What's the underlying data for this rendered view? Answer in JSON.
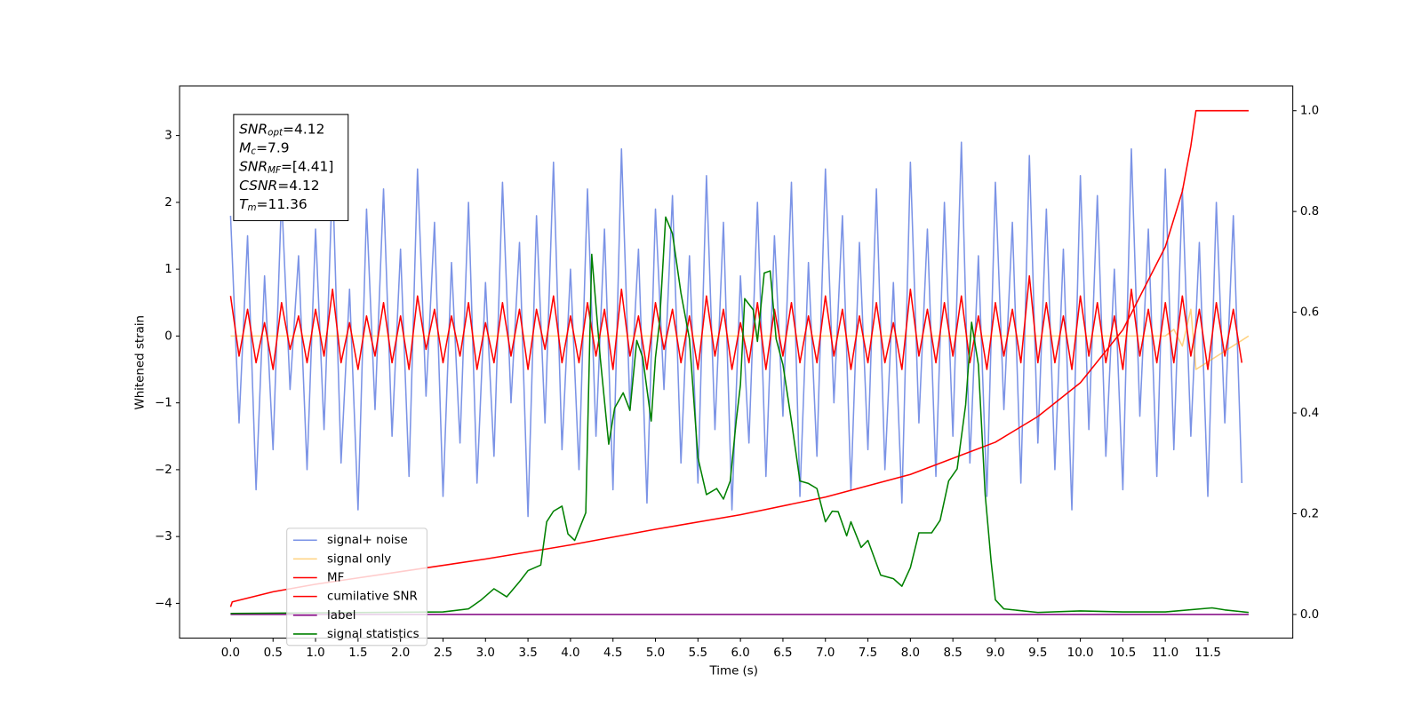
{
  "chart_data": {
    "type": "line",
    "xlabel": "Time (s)",
    "ylabel": "Whitened strain",
    "xlim": [
      -0.6,
      12.5
    ],
    "ylim": [
      -4.52,
      3.74
    ],
    "y2lim": [
      -0.047,
      1.049
    ],
    "xticks": [
      {
        "value": 0,
        "label": "0.0"
      },
      {
        "value": 0.5,
        "label": "0.5"
      },
      {
        "value": 1,
        "label": "1.0"
      },
      {
        "value": 1.5,
        "label": "1.5"
      },
      {
        "value": 2,
        "label": "2.0"
      },
      {
        "value": 2.5,
        "label": "2.5"
      },
      {
        "value": 3,
        "label": "3.0"
      },
      {
        "value": 3.5,
        "label": "3.5"
      },
      {
        "value": 4,
        "label": "4.0"
      },
      {
        "value": 4.5,
        "label": "4.5"
      },
      {
        "value": 5,
        "label": "5.0"
      },
      {
        "value": 5.5,
        "label": "5.5"
      },
      {
        "value": 6,
        "label": "6.0"
      },
      {
        "value": 6.5,
        "label": "6.5"
      },
      {
        "value": 7,
        "label": "7.0"
      },
      {
        "value": 7.5,
        "label": "7.5"
      },
      {
        "value": 8,
        "label": "8.0"
      },
      {
        "value": 8.5,
        "label": "8.5"
      },
      {
        "value": 9,
        "label": "9.0"
      },
      {
        "value": 9.5,
        "label": "9.5"
      },
      {
        "value": 10,
        "label": "10.0"
      },
      {
        "value": 10.5,
        "label": "10.5"
      },
      {
        "value": 11,
        "label": "11.0"
      },
      {
        "value": 11.5,
        "label": "11.5"
      }
    ],
    "yticks": [
      {
        "value": -4,
        "label": "−4"
      },
      {
        "value": -3,
        "label": "−3"
      },
      {
        "value": -2,
        "label": "−2"
      },
      {
        "value": -1,
        "label": "−1"
      },
      0,
      1,
      2,
      3
    ],
    "y2ticks": [
      {
        "value": 0,
        "label": "0.0"
      },
      {
        "value": 0.2,
        "label": "0.2"
      },
      {
        "value": 0.4,
        "label": "0.4"
      },
      {
        "value": 0.6,
        "label": "0.6"
      },
      {
        "value": 0.8,
        "label": "0.8"
      },
      {
        "value": 1,
        "label": "1.0"
      }
    ],
    "grid": false,
    "legend": "lower left",
    "annotation": [
      {
        "main": "SNR",
        "sub": "opt",
        "rest": "=4.12"
      },
      {
        "main": "M",
        "sub": "c",
        "rest": "=7.9"
      },
      {
        "main": "SNR",
        "sub": "MF",
        "rest": "=[4.41]"
      },
      {
        "main": "CSNR",
        "rest": "=4.12"
      },
      {
        "main": "T",
        "sub": "m",
        "rest": "=11.36"
      }
    ],
    "x": [
      0.0,
      0.1,
      0.2,
      0.3,
      0.4,
      0.5,
      0.6,
      0.7,
      0.8,
      0.9,
      1.0,
      1.1,
      1.2,
      1.3,
      1.4,
      1.5,
      1.6,
      1.7,
      1.8,
      1.9,
      2.0,
      2.1,
      2.2,
      2.3,
      2.4,
      2.5,
      2.6,
      2.7,
      2.8,
      2.9,
      3.0,
      3.1,
      3.2,
      3.3,
      3.4,
      3.5,
      3.6,
      3.7,
      3.8,
      3.9,
      4.0,
      4.1,
      4.2,
      4.3,
      4.4,
      4.5,
      4.6,
      4.7,
      4.8,
      4.9,
      5.0,
      5.1,
      5.2,
      5.3,
      5.4,
      5.5,
      5.6,
      5.7,
      5.8,
      5.9,
      6.0,
      6.1,
      6.2,
      6.3,
      6.4,
      6.5,
      6.6,
      6.7,
      6.8,
      6.9,
      7.0,
      7.1,
      7.2,
      7.3,
      7.4,
      7.5,
      7.6,
      7.7,
      7.8,
      7.9,
      8.0,
      8.1,
      8.2,
      8.3,
      8.4,
      8.5,
      8.6,
      8.7,
      8.8,
      8.9,
      9.0,
      9.1,
      9.2,
      9.3,
      9.4,
      9.5,
      9.6,
      9.7,
      9.8,
      9.9,
      10.0,
      10.1,
      10.2,
      10.3,
      10.4,
      10.5,
      10.6,
      10.7,
      10.8,
      10.9,
      11.0,
      11.1,
      11.2,
      11.3,
      11.4,
      11.5,
      11.6,
      11.7,
      11.8,
      11.9
    ],
    "series": [
      {
        "name": "signal+ noise",
        "color": "#7b93e6",
        "values": [
          1.8,
          -1.3,
          1.5,
          -2.3,
          0.9,
          -1.7,
          2.1,
          -0.8,
          1.2,
          -2.0,
          1.6,
          -1.4,
          2.4,
          -1.9,
          0.7,
          -2.6,
          1.9,
          -1.1,
          2.2,
          -1.5,
          1.3,
          -2.1,
          2.5,
          -0.9,
          1.7,
          -2.4,
          1.1,
          -1.6,
          2.0,
          -2.2,
          0.8,
          -1.8,
          2.3,
          -1.0,
          1.4,
          -2.7,
          1.8,
          -1.3,
          2.6,
          -1.7,
          1.0,
          -2.0,
          2.2,
          -1.5,
          1.6,
          -2.3,
          2.8,
          -1.1,
          1.3,
          -2.5,
          1.9,
          -0.8,
          2.1,
          -1.9,
          1.2,
          -2.2,
          2.4,
          -1.4,
          1.7,
          -2.6,
          0.9,
          -1.6,
          2.0,
          -2.1,
          1.5,
          -1.2,
          2.3,
          -2.4,
          1.1,
          -1.8,
          2.5,
          -1.0,
          1.8,
          -2.3,
          1.4,
          -1.7,
          2.2,
          -2.0,
          0.8,
          -2.5,
          2.6,
          -1.3,
          1.6,
          -2.1,
          2.0,
          -1.5,
          2.9,
          -1.9,
          1.2,
          -2.4,
          2.3,
          -1.1,
          1.7,
          -2.2,
          2.7,
          -1.6,
          1.9,
          -2.0,
          1.3,
          -2.6,
          2.4,
          -1.4,
          2.1,
          -1.8,
          1.0,
          -2.3,
          2.8,
          -1.2,
          1.6,
          -2.1,
          2.5,
          -1.7,
          2.2,
          -1.5,
          1.4,
          -2.4,
          2.0,
          -1.3,
          1.8,
          -2.2
        ]
      },
      {
        "name": "signal only",
        "color": "#ffa500",
        "x": [
          0,
          11.0,
          11.1,
          11.2,
          11.3,
          11.36,
          11.98
        ],
        "values": [
          0,
          0,
          0.1,
          -0.15,
          0.4,
          -0.5,
          0
        ]
      },
      {
        "name": "MF",
        "color": "#ff0000",
        "values": [
          0.6,
          -0.3,
          0.4,
          -0.4,
          0.2,
          -0.5,
          0.5,
          -0.2,
          0.3,
          -0.4,
          0.4,
          -0.3,
          0.7,
          -0.4,
          0.2,
          -0.5,
          0.3,
          -0.3,
          0.5,
          -0.4,
          0.3,
          -0.5,
          0.6,
          -0.2,
          0.4,
          -0.4,
          0.3,
          -0.3,
          0.5,
          -0.5,
          0.2,
          -0.4,
          0.5,
          -0.3,
          0.4,
          -0.5,
          0.4,
          -0.2,
          0.6,
          -0.4,
          0.3,
          -0.4,
          0.5,
          -0.3,
          0.4,
          -0.5,
          0.7,
          -0.3,
          0.3,
          -0.5,
          0.5,
          -0.2,
          0.4,
          -0.4,
          0.3,
          -0.5,
          0.6,
          -0.3,
          0.4,
          -0.5,
          0.2,
          -0.4,
          0.5,
          -0.5,
          0.4,
          -0.3,
          0.5,
          -0.4,
          0.3,
          -0.4,
          0.6,
          -0.3,
          0.4,
          -0.5,
          0.3,
          -0.4,
          0.5,
          -0.4,
          0.2,
          -0.5,
          0.7,
          -0.3,
          0.4,
          -0.4,
          0.5,
          -0.3,
          0.6,
          -0.4,
          0.3,
          -0.5,
          0.5,
          -0.3,
          0.4,
          -0.4,
          0.9,
          -0.4,
          0.5,
          -0.4,
          0.3,
          -0.5,
          0.6,
          -0.3,
          0.5,
          -0.4,
          0.3,
          -0.5,
          0.7,
          -0.3,
          0.4,
          -0.4,
          0.5,
          -0.4,
          0.6,
          -0.3,
          0.4,
          -0.5,
          0.5,
          -0.3,
          0.4,
          -0.4
        ]
      },
      {
        "name": "cumilative SNR",
        "color": "#ff0000",
        "axis": "y2",
        "x": [
          0,
          0.02,
          0.5,
          1,
          2,
          3,
          4,
          5,
          6,
          7,
          8,
          9,
          9.5,
          10,
          10.5,
          11,
          11.2,
          11.3,
          11.36,
          11.98
        ],
        "values": [
          0.015,
          0.025,
          0.045,
          0.06,
          0.085,
          0.11,
          0.138,
          0.169,
          0.198,
          0.233,
          0.278,
          0.342,
          0.393,
          0.46,
          0.565,
          0.73,
          0.84,
          0.93,
          1.0,
          1.0
        ]
      },
      {
        "name": "label",
        "color": "#800080",
        "axis": "y2",
        "x": [
          0,
          11.98
        ],
        "values": [
          0,
          0
        ]
      },
      {
        "name": "signal statistics",
        "color": "#008000",
        "axis": "y2",
        "x": [
          0,
          2.5,
          2.8,
          2.95,
          3.1,
          3.25,
          3.4,
          3.5,
          3.65,
          3.72,
          3.8,
          3.9,
          3.97,
          4.05,
          4.18,
          4.25,
          4.35,
          4.45,
          4.52,
          4.62,
          4.7,
          4.78,
          4.85,
          4.95,
          5.0,
          5.05,
          5.12,
          5.2,
          5.3,
          5.4,
          5.5,
          5.6,
          5.72,
          5.8,
          5.88,
          5.95,
          6.0,
          6.05,
          6.15,
          6.2,
          6.28,
          6.35,
          6.42,
          6.5,
          6.6,
          6.7,
          6.8,
          6.9,
          7.0,
          7.08,
          7.15,
          7.25,
          7.3,
          7.42,
          7.5,
          7.65,
          7.8,
          7.9,
          8.0,
          8.1,
          8.25,
          8.35,
          8.45,
          8.55,
          8.65,
          8.72,
          8.8,
          8.88,
          8.95,
          9.0,
          9.1,
          9.5,
          10.0,
          10.5,
          11.0,
          11.55,
          11.7,
          11.98
        ],
        "values": [
          0.002,
          0.005,
          0.011,
          0.029,
          0.051,
          0.035,
          0.065,
          0.087,
          0.098,
          0.184,
          0.205,
          0.215,
          0.16,
          0.147,
          0.202,
          0.715,
          0.51,
          0.338,
          0.41,
          0.44,
          0.405,
          0.544,
          0.51,
          0.384,
          0.51,
          0.584,
          0.789,
          0.756,
          0.638,
          0.547,
          0.311,
          0.238,
          0.25,
          0.229,
          0.265,
          0.384,
          0.456,
          0.627,
          0.605,
          0.542,
          0.678,
          0.682,
          0.547,
          0.496,
          0.384,
          0.265,
          0.26,
          0.25,
          0.184,
          0.205,
          0.204,
          0.156,
          0.184,
          0.133,
          0.147,
          0.078,
          0.071,
          0.056,
          0.093,
          0.162,
          0.162,
          0.187,
          0.265,
          0.289,
          0.416,
          0.58,
          0.496,
          0.238,
          0.105,
          0.029,
          0.011,
          0.004,
          0.007,
          0.005,
          0.005,
          0.013,
          0.009,
          0.004
        ]
      }
    ]
  }
}
